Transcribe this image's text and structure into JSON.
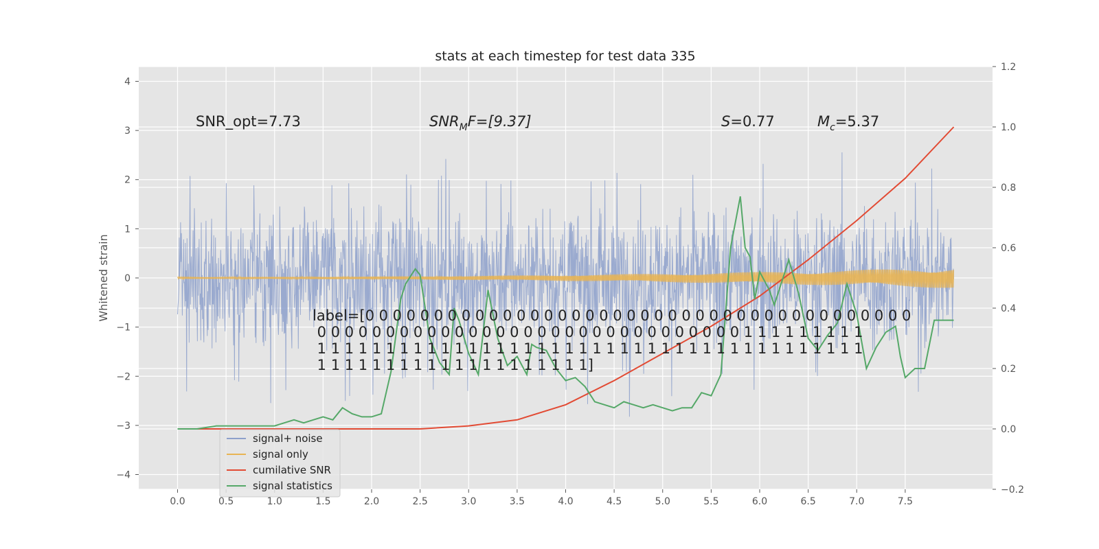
{
  "chart_data": {
    "type": "line",
    "title": "stats at each timestep for test data 335",
    "ylabel": "Whitened strain",
    "xlim": [
      -0.4,
      8.4
    ],
    "ylim": [
      -4.3,
      4.3
    ],
    "y2lim": [
      -0.2,
      1.2
    ],
    "xticks": [
      "0.0",
      "0.5",
      "1.0",
      "1.5",
      "2.0",
      "2.5",
      "3.0",
      "3.5",
      "4.0",
      "4.5",
      "5.0",
      "5.5",
      "6.0",
      "6.5",
      "7.0",
      "7.5"
    ],
    "xtick_values": [
      0.0,
      0.5,
      1.0,
      1.5,
      2.0,
      2.5,
      3.0,
      3.5,
      4.0,
      4.5,
      5.0,
      5.5,
      6.0,
      6.5,
      7.0,
      7.5
    ],
    "yticks": [
      "−4",
      "−3",
      "−2",
      "−1",
      "0",
      "1",
      "2",
      "3",
      "4"
    ],
    "ytick_values": [
      -4,
      -3,
      -2,
      -1,
      0,
      1,
      2,
      3,
      4
    ],
    "y2ticks": [
      "−0.2",
      "0.0",
      "0.2",
      "0.4",
      "0.6",
      "0.8",
      "1.0",
      "1.2"
    ],
    "y2tick_values": [
      -0.2,
      0.0,
      0.2,
      0.4,
      0.6,
      0.8,
      1.0,
      1.2
    ],
    "grid": true,
    "legend_position": "lower-left",
    "series": [
      {
        "name": "signal+ noise",
        "color": "#8da0cb",
        "axis": "left",
        "style": "dense noise band, typical amplitude ±1.8, peaks ±3.9",
        "x_range": [
          0.0,
          8.0
        ]
      },
      {
        "name": "signal only",
        "color": "#e8b453",
        "axis": "left",
        "style": "chirp envelope growing from 0 to ±0.2",
        "x_range": [
          0.0,
          8.0
        ]
      },
      {
        "name": "cumilative SNR",
        "color": "#e24a33",
        "axis": "right",
        "x": [
          0.0,
          0.5,
          1.0,
          1.5,
          2.0,
          2.5,
          3.0,
          3.5,
          4.0,
          4.5,
          5.0,
          5.5,
          6.0,
          6.5,
          7.0,
          7.5,
          8.0
        ],
        "values": [
          0.0,
          0.0,
          0.0,
          0.0,
          0.0,
          0.0,
          0.01,
          0.03,
          0.08,
          0.16,
          0.25,
          0.34,
          0.44,
          0.56,
          0.69,
          0.83,
          1.0
        ]
      },
      {
        "name": "signal statistics",
        "color": "#55a868",
        "axis": "right",
        "x": [
          0.0,
          0.2,
          0.4,
          0.6,
          0.8,
          1.0,
          1.1,
          1.2,
          1.3,
          1.4,
          1.5,
          1.6,
          1.7,
          1.8,
          1.9,
          2.0,
          2.1,
          2.2,
          2.3,
          2.35,
          2.45,
          2.5,
          2.6,
          2.7,
          2.8,
          2.85,
          2.9,
          3.0,
          3.1,
          3.2,
          3.3,
          3.4,
          3.5,
          3.6,
          3.65,
          3.7,
          3.8,
          3.9,
          4.0,
          4.1,
          4.2,
          4.3,
          4.4,
          4.5,
          4.6,
          4.7,
          4.8,
          4.9,
          5.0,
          5.1,
          5.2,
          5.3,
          5.4,
          5.5,
          5.6,
          5.7,
          5.8,
          5.85,
          5.9,
          5.95,
          6.0,
          6.1,
          6.15,
          6.2,
          6.3,
          6.4,
          6.5,
          6.6,
          6.7,
          6.8,
          6.9,
          7.0,
          7.1,
          7.2,
          7.3,
          7.4,
          7.45,
          7.5,
          7.6,
          7.7,
          7.8,
          7.9,
          8.0
        ],
        "values": [
          0.0,
          0.0,
          0.01,
          0.01,
          0.01,
          0.01,
          0.02,
          0.03,
          0.02,
          0.03,
          0.04,
          0.03,
          0.07,
          0.05,
          0.04,
          0.04,
          0.05,
          0.19,
          0.43,
          0.48,
          0.53,
          0.51,
          0.3,
          0.22,
          0.18,
          0.4,
          0.36,
          0.25,
          0.18,
          0.46,
          0.3,
          0.21,
          0.24,
          0.18,
          0.28,
          0.27,
          0.26,
          0.2,
          0.16,
          0.17,
          0.14,
          0.09,
          0.08,
          0.07,
          0.09,
          0.08,
          0.07,
          0.08,
          0.07,
          0.06,
          0.07,
          0.07,
          0.12,
          0.11,
          0.18,
          0.6,
          0.77,
          0.6,
          0.57,
          0.43,
          0.52,
          0.46,
          0.41,
          0.46,
          0.56,
          0.45,
          0.3,
          0.26,
          0.31,
          0.35,
          0.48,
          0.38,
          0.2,
          0.27,
          0.32,
          0.34,
          0.24,
          0.17,
          0.2,
          0.2,
          0.36,
          0.36,
          0.36
        ]
      }
    ],
    "annotations": [
      {
        "text": "SNR_opt=7.73"
      },
      {
        "base": "SNR",
        "sub": "M",
        "rest": "F=[9.37]"
      },
      {
        "base": "S",
        "rest": "=0.77"
      },
      {
        "base": "M",
        "sub": "c",
        "rest": "=5.37"
      }
    ],
    "label_text": [
      "label=[0 0 0 0 0 0 0 0 0 0 0 0 0 0 0 0 0 0 0 0 0 0 0 0 0 0 0 0 0 0 0 0 0 0 0 0 0 0 0 0",
      " 0 0 0 0 0 0 0 0 0 0 0 0 0 0 0 0 0 0 0 0 0 0 0 0 0 0 0 0 0 0 0 1 1 1 1 1 1 1 1 1",
      " 1 1 1 1 1 1 1 1 1 1 1 1 1 1 1 1 1 1 1 1 1 1 1 1 1 1 1 1 1 1 1 1 1 1 1 1 1 1 1 1",
      " 1 1 1 1 1 1 1 1 1 1 1 1 1 1 1 1 1 1 1 1]"
    ]
  }
}
